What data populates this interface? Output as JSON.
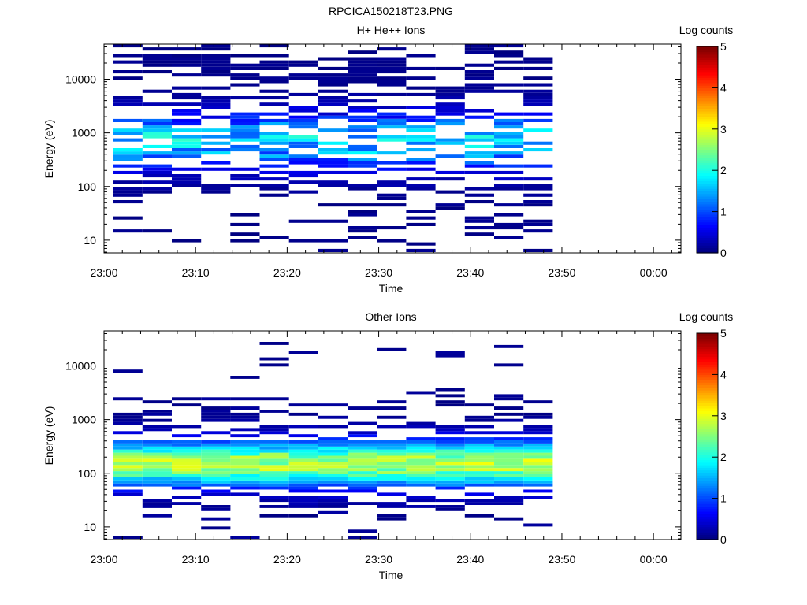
{
  "figure_title": "RPCICA150218T23.PNG",
  "chart_data": [
    {
      "type": "heatmap",
      "title": "H+ He++ Ions",
      "xlabel": "Time",
      "ylabel": "Energy (eV)",
      "y_scale": "log",
      "ylim": [
        5.8,
        45000
      ],
      "x_range_minutes": [
        0,
        63
      ],
      "x_ticks": [
        {
          "minutes": 0,
          "label": "23:00"
        },
        {
          "minutes": 10,
          "label": "23:10"
        },
        {
          "minutes": 20,
          "label": "23:20"
        },
        {
          "minutes": 30,
          "label": "23:30"
        },
        {
          "minutes": 40,
          "label": "23:40"
        },
        {
          "minutes": 50,
          "label": "23:50"
        },
        {
          "minutes": 60,
          "label": "00:00"
        }
      ],
      "y_ticks": [
        {
          "value": 10,
          "label": "10"
        },
        {
          "value": 100,
          "label": "100"
        },
        {
          "value": 1000,
          "label": "1000"
        },
        {
          "value": 10000,
          "label": "10000"
        }
      ],
      "colorbar": {
        "label": "Log counts",
        "min": 0,
        "max": 5,
        "ticks": [
          "0",
          "1",
          "2",
          "3",
          "4",
          "5"
        ]
      },
      "time_bins": [
        1,
        4.2,
        7.4,
        10.6,
        13.8,
        17,
        20.2,
        23.4,
        26.6,
        29.8,
        33,
        36.2,
        39.4,
        42.6,
        45.8
      ],
      "time_bin_width": 3.2,
      "energy_range_eV": [
        6,
        45000
      ],
      "data_extent_minutes": [
        1,
        49
      ],
      "color_scale": "jet",
      "dominant_log_counts": "0-1.5",
      "peak_energy_eV": 700,
      "peak_log_counts": 2.0
    },
    {
      "type": "heatmap",
      "title": "Other Ions",
      "xlabel": "Time",
      "ylabel": "Energy (eV)",
      "y_scale": "log",
      "ylim": [
        5.8,
        45000
      ],
      "x_range_minutes": [
        0,
        63
      ],
      "x_ticks": [
        {
          "minutes": 0,
          "label": "23:00"
        },
        {
          "minutes": 10,
          "label": "23:10"
        },
        {
          "minutes": 20,
          "label": "23:20"
        },
        {
          "minutes": 30,
          "label": "23:30"
        },
        {
          "minutes": 40,
          "label": "23:40"
        },
        {
          "minutes": 50,
          "label": "23:50"
        },
        {
          "minutes": 60,
          "label": "00:00"
        }
      ],
      "y_ticks": [
        {
          "value": 10,
          "label": "10"
        },
        {
          "value": 100,
          "label": "100"
        },
        {
          "value": 1000,
          "label": "1000"
        },
        {
          "value": 10000,
          "label": "10000"
        }
      ],
      "colorbar": {
        "label": "Log counts",
        "min": 0,
        "max": 5,
        "ticks": [
          "0",
          "1",
          "2",
          "3",
          "4",
          "5"
        ]
      },
      "time_bins": [
        1,
        4.2,
        7.4,
        10.6,
        13.8,
        17,
        20.2,
        23.4,
        26.6,
        29.8,
        33,
        36.2,
        39.4,
        42.6,
        45.8
      ],
      "time_bin_width": 3.2,
      "energy_range_eV": [
        6,
        28000
      ],
      "data_extent_minutes": [
        1,
        49
      ],
      "color_scale": "jet",
      "band_center_eV": 150,
      "band_peak_log_counts": 3.0,
      "band_range_eV": [
        60,
        400
      ]
    }
  ]
}
